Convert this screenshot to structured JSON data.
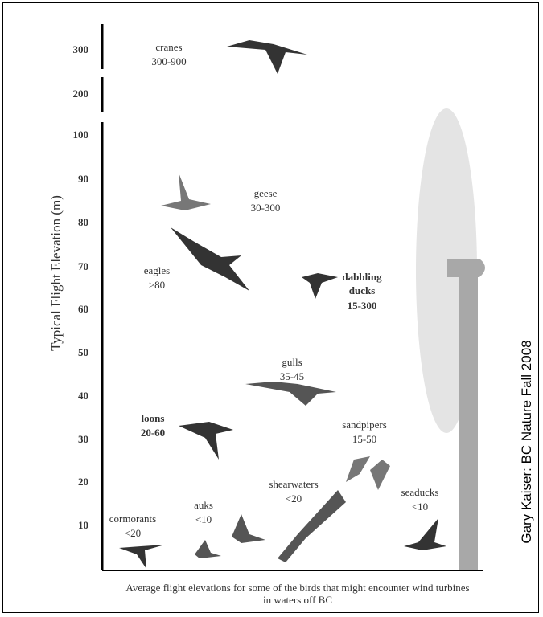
{
  "axis": {
    "label": "Typical Flight Elevation (m)",
    "ticks": [
      300,
      200,
      100,
      90,
      80,
      70,
      60,
      50,
      40,
      30,
      20,
      10
    ]
  },
  "birds": [
    {
      "name": "cranes",
      "range": "300-900"
    },
    {
      "name": "geese",
      "range": "30-300"
    },
    {
      "name": "eagles",
      "range": ">80"
    },
    {
      "name": "dabbling ducks",
      "range": "15-300"
    },
    {
      "name": "gulls",
      "range": "35-45"
    },
    {
      "name": "loons",
      "range": "20-60"
    },
    {
      "name": "sandpipers",
      "range": "15-50"
    },
    {
      "name": "shearwaters",
      "range": "<20"
    },
    {
      "name": "seaducks",
      "range": "<10"
    },
    {
      "name": "auks",
      "range": "<10"
    },
    {
      "name": "cormorants",
      "range": "<20"
    }
  ],
  "caption": "Average flight elevations for some of the birds that might encounter wind turbines in waters off BC",
  "credit": "Gary Kaiser: BC Nature Fall 2008"
}
